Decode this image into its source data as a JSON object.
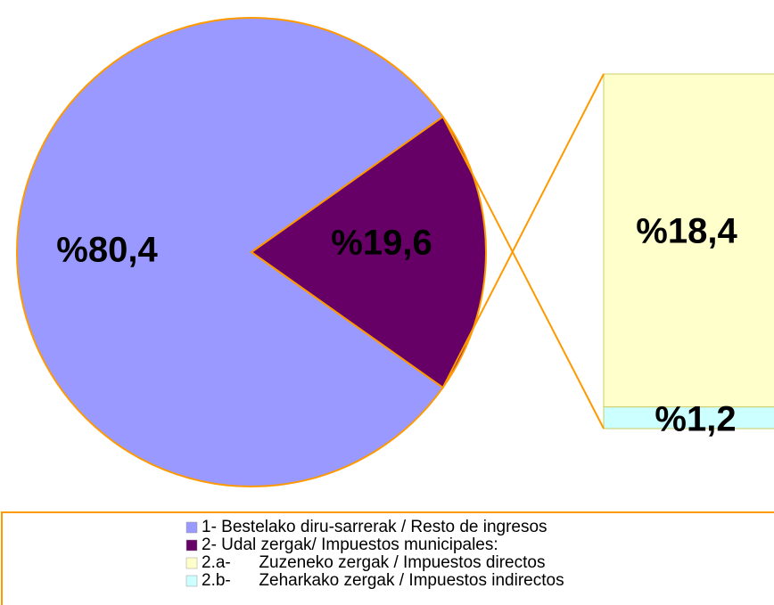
{
  "chart_data": {
    "type": "pie",
    "categories": [
      "1- Bestelako diru-sarrerak / Resto de ingresos",
      "2- Udal zergak/ Impuestos municipales:"
    ],
    "values": [
      80.4,
      19.6
    ],
    "value_labels": [
      "%80,4",
      "%19,6"
    ],
    "colors": [
      "#9999ff",
      "#660066"
    ],
    "breakdown": {
      "categories": [
        "2.a-      Zuzeneko zergak / Impuestos directos",
        "2.b-      Zeharkako zergak / Impuestos indirectos"
      ],
      "values": [
        18.4,
        1.2
      ],
      "value_labels": [
        "%18,4",
        "%1,2"
      ],
      "colors": [
        "#ffffcc",
        "#ccffff"
      ]
    }
  }
}
